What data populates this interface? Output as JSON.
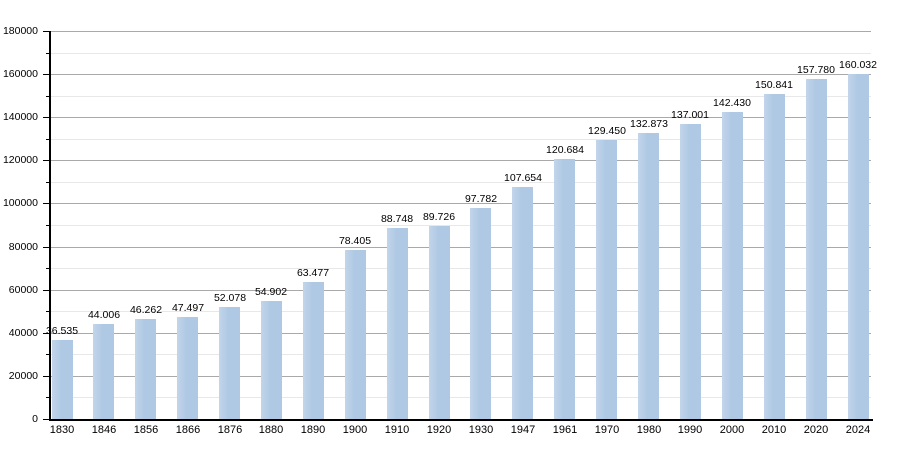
{
  "chart_data": {
    "type": "bar",
    "title": "",
    "xlabel": "",
    "ylabel": "",
    "categories": [
      "1830",
      "1846",
      "1856",
      "1866",
      "1876",
      "1880",
      "1890",
      "1900",
      "1910",
      "1920",
      "1930",
      "1947",
      "1961",
      "1970",
      "1980",
      "1990",
      "2000",
      "2010",
      "2020",
      "2024"
    ],
    "values": [
      36535,
      44006,
      46262,
      47497,
      52078,
      54902,
      63477,
      78405,
      88748,
      89726,
      97782,
      107654,
      120684,
      129450,
      132873,
      137001,
      142430,
      150841,
      157780,
      160032
    ],
    "value_labels": [
      "36.535",
      "44.006",
      "46.262",
      "47.497",
      "52.078",
      "54.902",
      "63.477",
      "78.405",
      "88.748",
      "89.726",
      "97.782",
      "107.654",
      "120.684",
      "129.450",
      "132.873",
      "137.001",
      "142.430",
      "150.841",
      "157.780",
      "160.032"
    ],
    "ylim": [
      0,
      180000
    ],
    "y_major_step": 20000,
    "y_minor_step": 10000,
    "y_tick_labels": [
      "0",
      "20000",
      "40000",
      "60000",
      "80000",
      "100000",
      "120000",
      "140000",
      "160000",
      "180000"
    ],
    "grid": true,
    "legend": false,
    "colors": {
      "bar_fill": "#afc9e4",
      "bar_fill_light": "#c2d5ea",
      "grid_major": "#a9a9a9",
      "grid_minor": "#e8e8e8",
      "axis": "#000000",
      "text": "#000000",
      "background": "#ffffff"
    }
  }
}
